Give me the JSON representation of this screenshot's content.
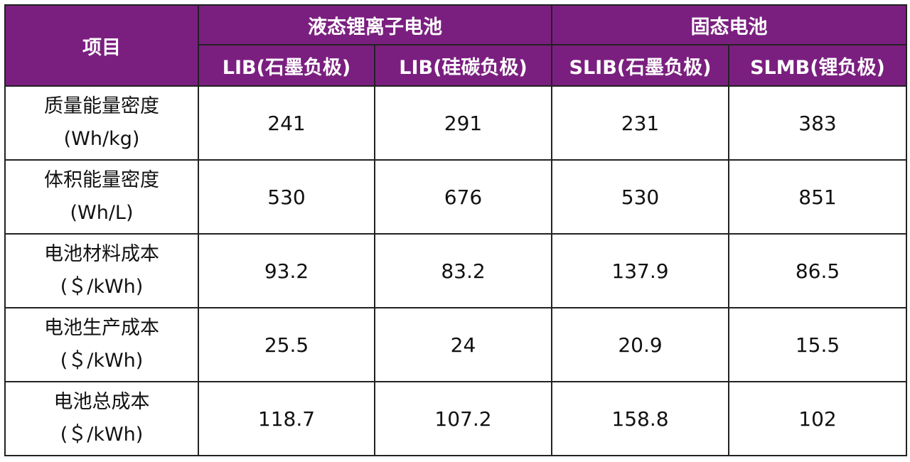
{
  "header": {
    "corner": "项目",
    "groups": [
      {
        "label": "液态锂离子电池",
        "span": 2
      },
      {
        "label": "固态电池",
        "span": 2
      }
    ],
    "columns": [
      "LIB(石墨负极)",
      "LIB(硅碳负极)",
      "SLIB(石墨负极)",
      "SLMB(锂负极)"
    ]
  },
  "table": {
    "rows": [
      {
        "label": "质量能量密度",
        "unit": "(Wh/kg)",
        "values": [
          241,
          291,
          231,
          383
        ]
      },
      {
        "label": "体积能量密度",
        "unit": "(Wh/L)",
        "values": [
          530,
          676,
          530,
          851
        ]
      },
      {
        "label": "电池材料成本",
        "unit": "(＄/kWh)",
        "values": [
          93.2,
          83.2,
          137.9,
          86.5
        ]
      },
      {
        "label": "电池生产成本",
        "unit": "(＄/kWh)",
        "values": [
          25.5,
          24,
          20.9,
          15.5
        ]
      },
      {
        "label": "电池总成本",
        "unit": "(＄/kWh)",
        "values": [
          118.7,
          107.2,
          158.8,
          102
        ]
      }
    ]
  }
}
